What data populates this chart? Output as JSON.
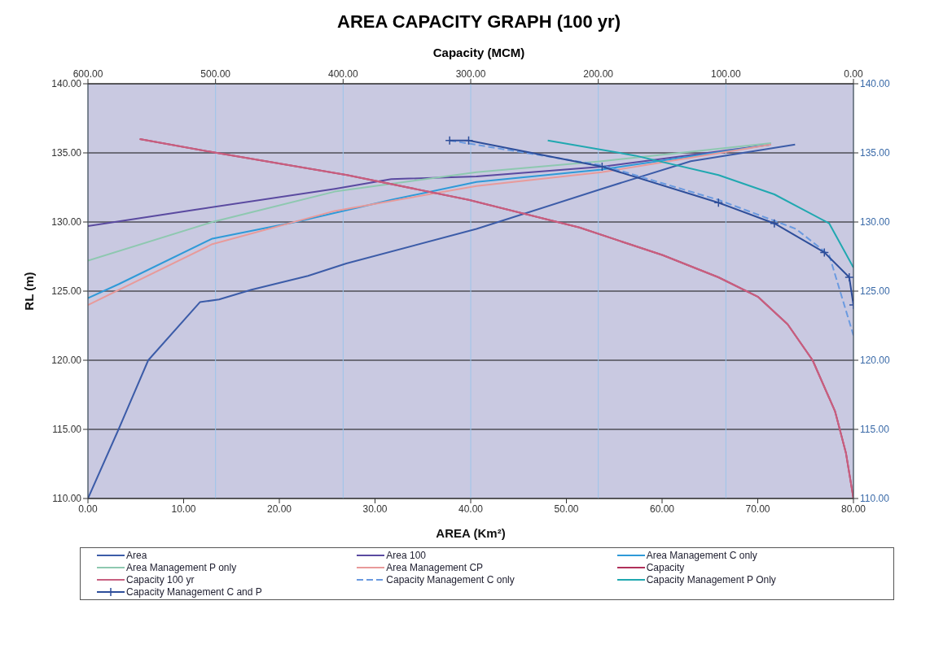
{
  "chart_data": {
    "type": "line",
    "title": "AREA CAPACITY GRAPH (100 yr)",
    "xlabel": "AREA (Km²)",
    "x2label": "Capacity (MCM)",
    "ylabel": "RL (m)",
    "xlim": [
      0,
      80
    ],
    "xticks": [
      {
        "value": 0,
        "label": "0.00"
      },
      {
        "value": 10,
        "label": "10.00"
      },
      {
        "value": 20,
        "label": "20.00"
      },
      {
        "value": 30,
        "label": "30.00"
      },
      {
        "value": 40,
        "label": "40.00"
      },
      {
        "value": 50,
        "label": "50.00"
      },
      {
        "value": 60,
        "label": "60.00"
      },
      {
        "value": 70,
        "label": "70.00"
      },
      {
        "value": 80,
        "label": "80.00"
      }
    ],
    "x2lim": [
      600,
      0
    ],
    "x2ticks": [
      {
        "value": 600,
        "label": "600.00"
      },
      {
        "value": 500,
        "label": "500.00"
      },
      {
        "value": 400,
        "label": "400.00"
      },
      {
        "value": 300,
        "label": "300.00"
      },
      {
        "value": 200,
        "label": "200.00"
      },
      {
        "value": 100,
        "label": "100.00"
      },
      {
        "value": 0,
        "label": "0.00"
      }
    ],
    "ylim": [
      110,
      140
    ],
    "yticks": [
      {
        "value": 110,
        "label": "110.00"
      },
      {
        "value": 115,
        "label": "115.00"
      },
      {
        "value": 120,
        "label": "120.00"
      },
      {
        "value": 125,
        "label": "125.00"
      },
      {
        "value": 130,
        "label": "130.00"
      },
      {
        "value": 135,
        "label": "135.00"
      },
      {
        "value": 140,
        "label": "140.00"
      }
    ],
    "y2lim": [
      110,
      140
    ],
    "y2ticks": [
      {
        "value": 110,
        "label": "110.00"
      },
      {
        "value": 115,
        "label": "115.00"
      },
      {
        "value": 120,
        "label": "120.00"
      },
      {
        "value": 125,
        "label": "125.00"
      },
      {
        "value": 130,
        "label": "130.00"
      },
      {
        "value": 135,
        "label": "135.00"
      },
      {
        "value": 140,
        "label": "140.00"
      }
    ],
    "grid": true,
    "legend": "bottom",
    "marker": "none",
    "line_style": "solid",
    "series": [
      {
        "name": "Area",
        "color": "#3c5ca8",
        "x": [
          0,
          3.2,
          6.3,
          11.7,
          13.7,
          17.1,
          23,
          27,
          40.6,
          45.6,
          53.7,
          63,
          73.9
        ],
        "values": [
          110,
          115,
          120,
          124.2,
          124.4,
          125.1,
          126.1,
          127,
          129.5,
          130.6,
          132.4,
          134.4,
          135.6
        ]
      },
      {
        "name": "Area 100",
        "color": "#5a4aa0",
        "x": [
          0,
          11.3,
          25.8,
          31.7,
          40.6,
          53.7,
          71.4
        ],
        "values": [
          129.7,
          130.9,
          132.4,
          133.1,
          133.3,
          134,
          135.6
        ]
      },
      {
        "name": "Area Management C only",
        "color": "#2f9ad8",
        "x": [
          0,
          3.2,
          13,
          21.7,
          31.7,
          40.6,
          53.7,
          71.4
        ],
        "values": [
          124.5,
          125.5,
          128.8,
          130,
          131.6,
          132.9,
          133.8,
          135.6
        ]
      },
      {
        "name": "Area Management P only",
        "color": "#8ec8b0",
        "x": [
          0,
          13,
          25.8,
          40.6,
          53.7,
          71.4
        ],
        "values": [
          127.2,
          130,
          132.2,
          133.6,
          134.4,
          135.7
        ]
      },
      {
        "name": "Area Management CP",
        "color": "#e89a9a",
        "x": [
          0,
          13,
          25.8,
          40.6,
          53.7,
          71.4
        ],
        "values": [
          124,
          128.4,
          130.8,
          132.6,
          133.6,
          135.6
        ]
      },
      {
        "name": "Capacity",
        "color": "#b0305a",
        "axis": "x2",
        "x": [
          559.4,
          499,
          397,
          301.6,
          214.8,
          149.5,
          105.8,
          75,
          51.6,
          32,
          14.4,
          5.9,
          0
        ],
        "values": [
          136,
          135,
          133.4,
          131.6,
          129.6,
          127.6,
          126,
          124.6,
          122.6,
          120,
          116.3,
          113.3,
          110
        ]
      },
      {
        "name": "Capacity 100 yr",
        "color": "#c86080",
        "axis": "x2",
        "x": [
          559.4,
          499,
          397,
          301.6,
          214.8,
          149.5,
          105.8,
          75,
          51.6,
          32,
          14.4,
          5.9,
          0
        ],
        "values": [
          136,
          135,
          133.4,
          131.6,
          129.6,
          127.6,
          126,
          124.6,
          122.6,
          120,
          116.3,
          113.3,
          110
        ]
      },
      {
        "name": "Capacity Management C only",
        "color": "#6a9ae0",
        "axis": "x2",
        "line_style": "dashed",
        "x": [
          316.5,
          197,
          105.8,
          45,
          19,
          0
        ],
        "values": [
          135.9,
          134.1,
          131.6,
          129.5,
          127.6,
          121.8
        ]
      },
      {
        "name": "Capacity Management P Only",
        "color": "#20a8b0",
        "axis": "x2",
        "x": [
          239.6,
          171,
          105.8,
          62,
          19,
          0
        ],
        "values": [
          135.9,
          134.8,
          133.4,
          132,
          129.9,
          126.7
        ]
      },
      {
        "name": "Capacity Management C and P",
        "color": "#2e4e9a",
        "axis": "x2",
        "marker": "cross",
        "x": [
          316.5,
          301.6,
          197,
          105.8,
          62,
          22.8,
          3.3,
          0
        ],
        "values": [
          135.9,
          135.9,
          134,
          131.4,
          129.9,
          127.8,
          126,
          124
        ]
      }
    ]
  }
}
